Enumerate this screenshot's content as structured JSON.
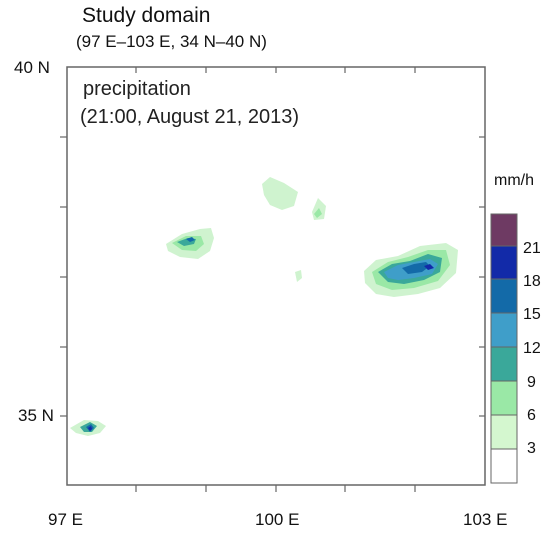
{
  "title": "Study domain",
  "subtitle": "(97 E–103 E, 34 N–40 N)",
  "caption": {
    "variable": "precipitation",
    "time": "(21:00, August 21, 2013)"
  },
  "axes": {
    "x_ticks": [
      "97 E",
      "100 E",
      "103 E"
    ],
    "y_ticks": [
      "40 N",
      "35 N"
    ]
  },
  "colorbar": {
    "unit": "mm/h",
    "labels": [
      "21",
      "18",
      "15",
      "12",
      "9",
      "6",
      "3"
    ],
    "colors": [
      "#ffffff",
      "#d4f7cf",
      "#9ae8a6",
      "#3aa89a",
      "#3f9ec9",
      "#136aa8",
      "#122aa8",
      "#6e3a63"
    ]
  },
  "precip_colors": {
    "light": "#cff3cf",
    "medium": "#9ae8a6",
    "teal": "#3aa89a",
    "blue": "#3f9ec9",
    "deep": "#136aa8",
    "navy": "#122aa8"
  }
}
